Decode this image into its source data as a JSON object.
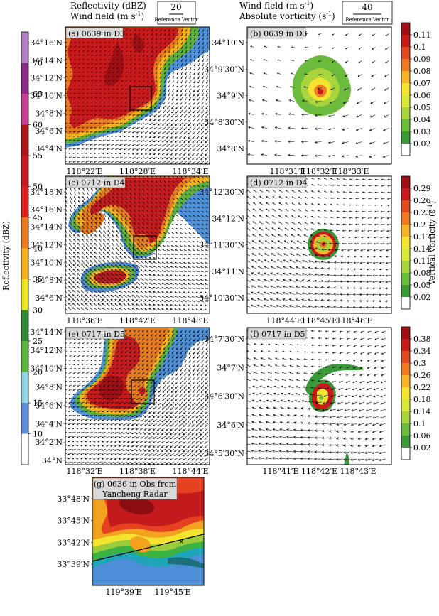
{
  "left_header": {
    "line1": "Reflectivity (dBZ)",
    "line2": "Wind field (m s",
    "line2_exp": "-1",
    "line2_end": ")"
  },
  "left_ref": {
    "value": "20",
    "label": "Reference Vector"
  },
  "right_header": {
    "line1": "Wind field (m s",
    "line1_exp": "-1",
    "line1_end": ")",
    "line2": "Absolute vorticity (s",
    "line2_exp": "-1",
    "line2_end": ")"
  },
  "right_ref": {
    "value": "40",
    "label": "Reference Vector"
  },
  "refl_colorbar": {
    "title": "Reflectivity (dBZ)",
    "ticks": [
      "70",
      "65",
      "60",
      "55",
      "50",
      "45",
      "40",
      "35",
      "30",
      "25",
      "20",
      "15",
      "10"
    ],
    "colors": [
      "#b07fc6",
      "#8a2a86",
      "#c23f93",
      "#ae1519",
      "#c8191c",
      "#e02020",
      "#e87a1e",
      "#f2b11b",
      "#e8e51c",
      "#2e8b33",
      "#59b23a",
      "#8fd3e0",
      "#5b8ed8",
      "#ffffff"
    ]
  },
  "vort_colorbar_a": {
    "ticks": [
      "0.11",
      "0.1",
      "0.09",
      "0.08",
      "0.07",
      "0.06",
      "0.05",
      "0.04",
      "0.03",
      "0.02"
    ]
  },
  "vort_colorbar_d": {
    "title": "Vertical vorticity (s",
    "title_exp": "-1",
    "title_end": ")",
    "ticks": [
      "0.29",
      "0.26",
      "0.23",
      "0.2",
      "0.17",
      "0.14",
      "0.11",
      "0.08",
      "0.05",
      "0.02"
    ]
  },
  "vort_colorbar_f": {
    "ticks": [
      "0.38",
      "0.34",
      "0.3",
      "0.26",
      "0.22",
      "0.18",
      "0.14",
      "0.1",
      "0.06",
      "0.02"
    ]
  },
  "vort_colors": [
    "#ffffff",
    "#3a9a38",
    "#6cbb3c",
    "#a8d43e",
    "#d8e83a",
    "#f4e430",
    "#f6b42a",
    "#ee7b24",
    "#e04a20",
    "#c81c1c",
    "#a10f14"
  ],
  "panels": {
    "a": {
      "title": "(a) 0639 in D3",
      "y": [
        "34°16′N",
        "34°14′N",
        "34°12′N",
        "34°10′N",
        "34°8′N",
        "34°6′N",
        "34°4′N"
      ],
      "x": [
        "118°22′E",
        "118°28′E",
        "118°34′E"
      ]
    },
    "b": {
      "title": "(b) 0639 in D3",
      "y": [
        "34°10′N",
        "34°9′30″N",
        "34°9′N",
        "34°8′30″N",
        "34°8′N"
      ],
      "x": [
        "118°31′E",
        "118°32′E",
        "118°33′E"
      ]
    },
    "c": {
      "title": "(c) 0712 in D4",
      "y": [
        "34°18′N",
        "34°16′N",
        "34°14′N",
        "34°12′N",
        "34°10′N",
        "34°8′N",
        "34°6′N"
      ],
      "x": [
        "118°36′E",
        "118°42′E",
        "118°48′E"
      ]
    },
    "d": {
      "title": "(d) 0712 in D4",
      "y": [
        "34°12′30″N",
        "34°12′N",
        "34°11′30″N",
        "34°11′N",
        "34°10′30″N"
      ],
      "x": [
        "118°44′E",
        "118°45′E",
        "118°46′E"
      ]
    },
    "e": {
      "title": "(e) 0717 in D5",
      "y": [
        "34°14′N",
        "34°12′N",
        "34°10′N",
        "34°8′N",
        "34°6′N",
        "34°4′N",
        "34°2′N",
        "34°N"
      ],
      "x": [
        "118°32′E",
        "118°38′E",
        "118°44′E"
      ]
    },
    "f": {
      "title": "(f) 0717 in D5",
      "y": [
        "34°7′30″N",
        "34°7′N",
        "34°6′30″N",
        "34°6′N",
        "34°5′30″N"
      ],
      "x": [
        "118°41′E",
        "118°42′E",
        "118°43′E"
      ]
    },
    "g": {
      "title_line1": "(g) 0636 in Obs from",
      "title_line2": "Yancheng Radar",
      "y": [
        "33°48′N",
        "33°45′N",
        "33°42′N",
        "33°39′N"
      ],
      "x": [
        "119°39′E",
        "119°45′E"
      ]
    }
  }
}
